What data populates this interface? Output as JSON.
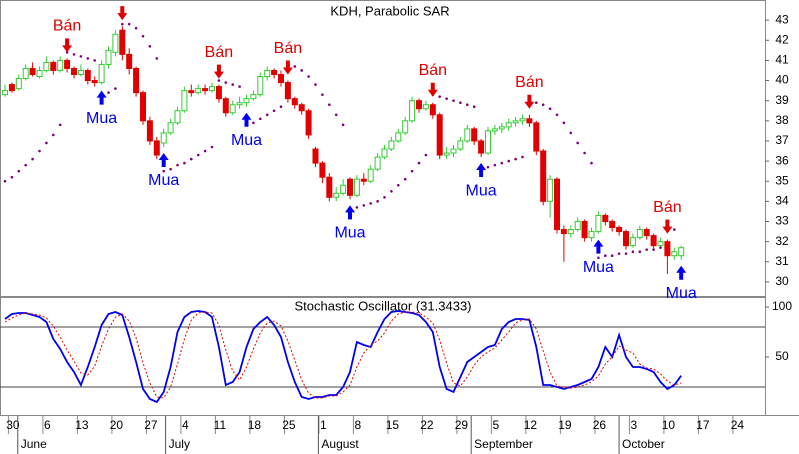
{
  "chart_data": [
    {
      "type": "candlestick",
      "title": "KDH, Parabolic SAR",
      "ylim": [
        29.3,
        44
      ],
      "yticks": [
        30,
        31,
        32,
        33,
        34,
        35,
        36,
        37,
        38,
        39,
        40,
        41,
        42,
        43
      ],
      "up_color": "#33cc33",
      "down_color": "#e00000",
      "sar_color": "#800080",
      "sell_color": "#e00000",
      "buy_color": "#0000ee",
      "signal_labels": {
        "sell": "Bán",
        "buy": "Mua"
      },
      "open": [
        39.3,
        39.8,
        39.6,
        40.1,
        40.6,
        40.2,
        40.5,
        40.9,
        40.5,
        41.0,
        40.6,
        40.3,
        40.5,
        40.0,
        39.9,
        40.8,
        41.4,
        42.5,
        41.3,
        40.6,
        39.4,
        38.0,
        37.0,
        36.9,
        37.4,
        37.9,
        38.5,
        39.5,
        39.4,
        39.6,
        39.5,
        39.7,
        39.1,
        38.4,
        38.8,
        38.9,
        39.1,
        39.3,
        40.2,
        40.5,
        40.3,
        39.9,
        39.1,
        38.8,
        38.5,
        36.6,
        35.9,
        35.2,
        34.2,
        34.4,
        35.1,
        34.3,
        35.1,
        35.0,
        35.6,
        36.2,
        36.6,
        37.0,
        37.4,
        38.0,
        39.0,
        38.6,
        38.8,
        38.3,
        36.3,
        36.4,
        36.6,
        37.0,
        37.6,
        37.0,
        36.4,
        37.5,
        37.6,
        37.7,
        37.9,
        38.0,
        38.1,
        37.9,
        36.5,
        34.0,
        35.1,
        32.6,
        32.4,
        32.6,
        33.0,
        32.2,
        32.5,
        33.3,
        33.0,
        32.7,
        32.5,
        31.8,
        32.2,
        32.6,
        32.3,
        31.8,
        32.0,
        31.3,
        31.3,
        null,
        null,
        null,
        null,
        null,
        null,
        null,
        null,
        null
      ],
      "high": [
        39.8,
        39.9,
        40.3,
        40.8,
        40.9,
        40.7,
        41.2,
        41.0,
        41.2,
        41.1,
        40.7,
        40.8,
        40.6,
        40.2,
        41.0,
        41.7,
        42.5,
        42.7,
        41.6,
        40.7,
        39.5,
        38.2,
        37.2,
        37.6,
        38.1,
        38.7,
        39.7,
        39.8,
        39.8,
        39.8,
        39.9,
        39.8,
        39.2,
        39.0,
        39.2,
        39.3,
        39.5,
        40.4,
        40.7,
        40.6,
        40.5,
        40.0,
        39.2,
        38.9,
        38.6,
        36.7,
        36.0,
        35.4,
        34.7,
        35.1,
        35.2,
        35.3,
        35.4,
        35.8,
        36.4,
        36.8,
        37.2,
        37.6,
        38.2,
        39.2,
        39.1,
        39.0,
        38.9,
        38.4,
        36.7,
        36.8,
        37.2,
        37.8,
        37.7,
        37.1,
        37.7,
        37.8,
        37.9,
        38.1,
        38.2,
        38.3,
        38.3,
        38.0,
        36.6,
        35.3,
        35.2,
        32.8,
        32.8,
        33.2,
        33.1,
        32.7,
        33.5,
        33.4,
        33.1,
        32.8,
        32.6,
        32.4,
        32.8,
        32.7,
        32.4,
        32.2,
        32.1,
        31.7,
        31.8,
        null,
        null,
        null,
        null,
        null,
        null,
        null,
        null,
        null
      ],
      "low": [
        39.2,
        39.4,
        39.5,
        40.0,
        40.2,
        40.1,
        40.4,
        40.3,
        40.4,
        40.4,
        40.1,
        40.2,
        39.8,
        39.7,
        39.8,
        40.6,
        41.2,
        41.0,
        40.3,
        39.2,
        37.8,
        36.8,
        36.1,
        36.7,
        37.3,
        37.8,
        38.4,
        39.2,
        39.3,
        39.3,
        39.4,
        38.9,
        38.2,
        38.3,
        38.6,
        38.7,
        39.0,
        39.2,
        40.0,
        40.1,
        39.7,
        38.9,
        38.6,
        38.3,
        37.1,
        35.7,
        34.9,
        34.0,
        34.0,
        34.3,
        34.1,
        34.2,
        34.8,
        34.9,
        35.5,
        36.1,
        36.5,
        36.9,
        37.3,
        37.9,
        38.4,
        38.5,
        38.1,
        36.1,
        36.1,
        36.2,
        36.5,
        36.9,
        36.8,
        36.2,
        36.3,
        37.3,
        37.4,
        37.5,
        37.7,
        37.8,
        37.7,
        36.3,
        33.8,
        33.2,
        32.4,
        31.0,
        32.2,
        32.5,
        32.0,
        32.0,
        32.4,
        32.8,
        32.5,
        32.3,
        31.6,
        31.7,
        32.1,
        32.1,
        31.6,
        31.7,
        30.4,
        31.1,
        31.1,
        null,
        null,
        null,
        null,
        null,
        null,
        null,
        null,
        null
      ],
      "close": [
        39.5,
        39.5,
        40.1,
        40.6,
        40.3,
        40.5,
        40.9,
        40.5,
        41.0,
        40.6,
        40.3,
        40.5,
        40.0,
        39.9,
        40.8,
        41.5,
        42.3,
        41.3,
        40.6,
        39.4,
        38.0,
        37.0,
        36.3,
        37.4,
        37.9,
        38.5,
        39.5,
        39.4,
        39.6,
        39.5,
        39.7,
        39.1,
        38.4,
        38.8,
        38.9,
        39.1,
        39.3,
        40.2,
        40.5,
        40.3,
        39.9,
        39.1,
        38.8,
        38.5,
        37.3,
        35.9,
        35.2,
        34.2,
        34.4,
        34.8,
        34.3,
        35.1,
        35.0,
        35.6,
        36.2,
        36.6,
        37.0,
        37.4,
        38.0,
        39.0,
        38.6,
        38.8,
        38.3,
        36.3,
        36.4,
        36.6,
        37.0,
        37.6,
        37.0,
        36.4,
        37.5,
        37.6,
        37.7,
        37.9,
        38.0,
        38.1,
        37.9,
        36.5,
        34.0,
        35.1,
        32.6,
        32.4,
        32.6,
        33.0,
        32.2,
        32.5,
        33.3,
        33.0,
        32.7,
        32.5,
        31.8,
        32.2,
        32.6,
        32.3,
        31.8,
        32.0,
        31.3,
        31.5,
        31.7,
        null,
        null,
        null,
        null,
        null,
        null,
        null,
        null,
        null
      ],
      "sar": [
        35.0,
        35.2,
        35.5,
        35.8,
        36.1,
        36.5,
        36.9,
        37.3,
        37.8,
        41.4,
        41.3,
        41.2,
        41.1,
        41.0,
        39.3,
        39.4,
        39.6,
        42.8,
        42.8,
        42.6,
        42.2,
        41.7,
        41.1,
        35.5,
        35.6,
        35.8,
        35.9,
        36.1,
        36.3,
        36.5,
        36.7,
        40.0,
        39.9,
        39.8,
        39.7,
        37.8,
        37.9,
        38.1,
        38.3,
        38.5,
        38.7,
        40.8,
        40.7,
        40.5,
        40.2,
        39.8,
        39.3,
        38.8,
        38.3,
        37.8,
        33.6,
        33.7,
        33.8,
        33.9,
        34.0,
        34.2,
        34.5,
        34.8,
        35.1,
        35.5,
        35.9,
        36.3,
        39.3,
        39.2,
        39.1,
        39.0,
        38.9,
        38.8,
        38.7,
        35.6,
        35.7,
        35.8,
        35.9,
        36.0,
        36.1,
        36.2,
        39.0,
        38.9,
        38.8,
        38.6,
        38.3,
        37.9,
        37.4,
        36.9,
        36.4,
        35.9,
        31.2,
        31.3,
        31.3,
        31.4,
        31.4,
        31.5,
        31.5,
        31.6,
        31.6,
        31.7,
        32.8,
        32.6,
        30.6,
        null,
        null,
        null,
        null,
        null,
        null,
        null,
        null,
        null
      ]
    },
    {
      "type": "line",
      "title": "Stochastic Oscillator (31.3433)",
      "ylim": [
        -8,
        110
      ],
      "yticks": [
        50,
        100
      ],
      "levels": [
        20,
        80
      ],
      "categories": [
        null,
        "30",
        null,
        null,
        null,
        null,
        "6",
        null,
        null,
        null,
        null,
        "13",
        null,
        null,
        null,
        null,
        "20",
        null,
        null,
        null,
        null,
        "27",
        null,
        null,
        null,
        null,
        "4",
        null,
        null,
        null,
        null,
        "11",
        null,
        null,
        null,
        null,
        "18",
        null,
        null,
        null,
        null,
        "25",
        null,
        null,
        null,
        null,
        "1",
        null,
        null,
        null,
        null,
        "8",
        null,
        null,
        null,
        null,
        "15",
        null,
        null,
        null,
        null,
        "22",
        null,
        null,
        null,
        null,
        "29",
        null,
        null,
        null,
        null,
        "5",
        null,
        null,
        null,
        null,
        "12",
        null,
        null,
        null,
        null,
        "19",
        null,
        null,
        null,
        null,
        "26",
        null,
        null,
        null,
        null,
        "3",
        null,
        null,
        null,
        null,
        "10",
        null,
        null,
        null,
        null,
        "17",
        null,
        null,
        null,
        null,
        "24",
        null
      ],
      "months": [
        "June",
        "July",
        "August",
        "September",
        "October"
      ],
      "series": [
        {
          "color": "#0000ee",
          "style": "solid",
          "values": [
            88,
            93,
            94,
            94,
            92,
            90,
            85,
            68,
            58,
            45,
            35,
            22,
            40,
            60,
            82,
            93,
            95,
            92,
            70,
            45,
            18,
            8,
            5,
            15,
            40,
            75,
            90,
            95,
            96,
            95,
            90,
            60,
            22,
            25,
            35,
            60,
            78,
            85,
            90,
            82,
            70,
            45,
            25,
            10,
            8,
            10,
            10,
            12,
            12,
            20,
            35,
            65,
            62,
            60,
            75,
            88,
            95,
            96,
            95,
            94,
            92,
            85,
            75,
            40,
            18,
            15,
            30,
            45,
            50,
            55,
            60,
            62,
            78,
            85,
            88,
            88,
            87,
            60,
            22,
            22,
            20,
            18,
            20,
            22,
            25,
            28,
            40,
            60,
            50,
            72,
            50,
            40,
            40,
            38,
            35,
            25,
            18,
            22,
            31.3433,
            null,
            null,
            null,
            null,
            null,
            null,
            null,
            null,
            null
          ]
        },
        {
          "color": "#e00000",
          "style": "dotted",
          "values": [
            85,
            89,
            92,
            94,
            93,
            92,
            89,
            81,
            70,
            57,
            46,
            34,
            32,
            41,
            61,
            78,
            90,
            93,
            86,
            69,
            44,
            24,
            10,
            9,
            20,
            43,
            68,
            87,
            94,
            95,
            94,
            82,
            57,
            36,
            27,
            40,
            58,
            74,
            84,
            86,
            81,
            66,
            47,
            27,
            14,
            9,
            9,
            11,
            11,
            15,
            22,
            40,
            54,
            62,
            66,
            74,
            86,
            93,
            95,
            95,
            94,
            90,
            84,
            67,
            44,
            24,
            21,
            30,
            42,
            50,
            55,
            59,
            67,
            75,
            84,
            87,
            88,
            78,
            56,
            35,
            21,
            20,
            19,
            20,
            22,
            25,
            31,
            43,
            50,
            61,
            57,
            54,
            43,
            39,
            38,
            33,
            26,
            22,
            24,
            null,
            null,
            null,
            null,
            null,
            null,
            null,
            null,
            null
          ]
        }
      ]
    }
  ]
}
